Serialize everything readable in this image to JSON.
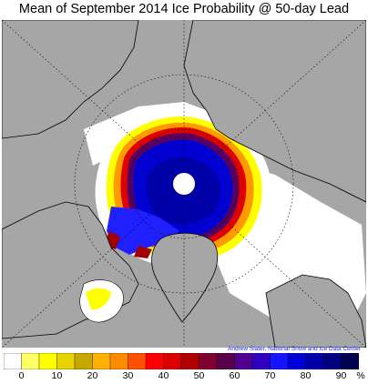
{
  "title": "Mean of September 2014 Ice Probability @ 50-day Lead",
  "credit": "Andrew Slater, National Snow and Ice Data Center",
  "map": {
    "land_color": "#a6a6a6",
    "open_water_color": "#ffffff",
    "pole_hole_color": "#ffffff"
  },
  "legend": {
    "unit": "%",
    "tick_labels": [
      "0",
      "10",
      "20",
      "30",
      "40",
      "50",
      "60",
      "70",
      "80",
      "90",
      "%"
    ],
    "colors": [
      "#ffffff",
      "#ffff66",
      "#ffff00",
      "#e6d400",
      "#c8a800",
      "#ffb000",
      "#ff8c00",
      "#ff5000",
      "#ff0000",
      "#d80000",
      "#b00000",
      "#800030",
      "#58004a",
      "#500090",
      "#2f00c0",
      "#1414ff",
      "#0000d8",
      "#0000a8",
      "#000080",
      "#000050"
    ]
  }
}
